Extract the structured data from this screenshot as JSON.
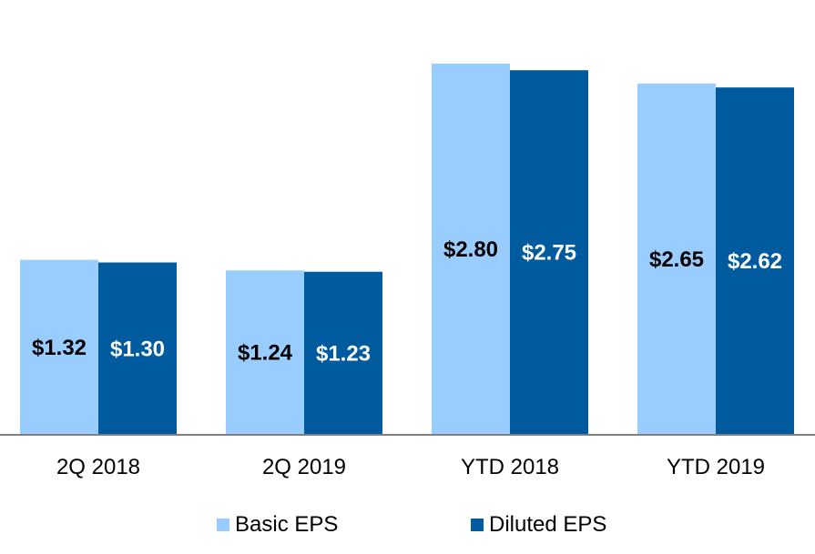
{
  "chart_data": {
    "type": "bar",
    "categories": [
      "2Q 2018",
      "2Q 2019",
      "YTD 2018",
      "YTD 2019"
    ],
    "series": [
      {
        "name": "Basic EPS",
        "color": "#99ccff",
        "values": [
          1.32,
          1.24,
          2.8,
          2.65
        ],
        "labels": [
          "$1.32",
          "$1.24",
          "$2.80",
          "$2.65"
        ],
        "label_color": "#000000"
      },
      {
        "name": "Diluted EPS",
        "color": "#005a9e",
        "values": [
          1.3,
          1.23,
          2.75,
          2.62
        ],
        "labels": [
          "$1.30",
          "$1.23",
          "$2.75",
          "$2.62"
        ],
        "label_color": "#ffffff"
      }
    ],
    "title": "",
    "xlabel": "",
    "ylabel": "",
    "ylim": [
      0,
      2.82
    ],
    "grid": false,
    "legend": "bottom-center",
    "axis_color": "#808080"
  }
}
